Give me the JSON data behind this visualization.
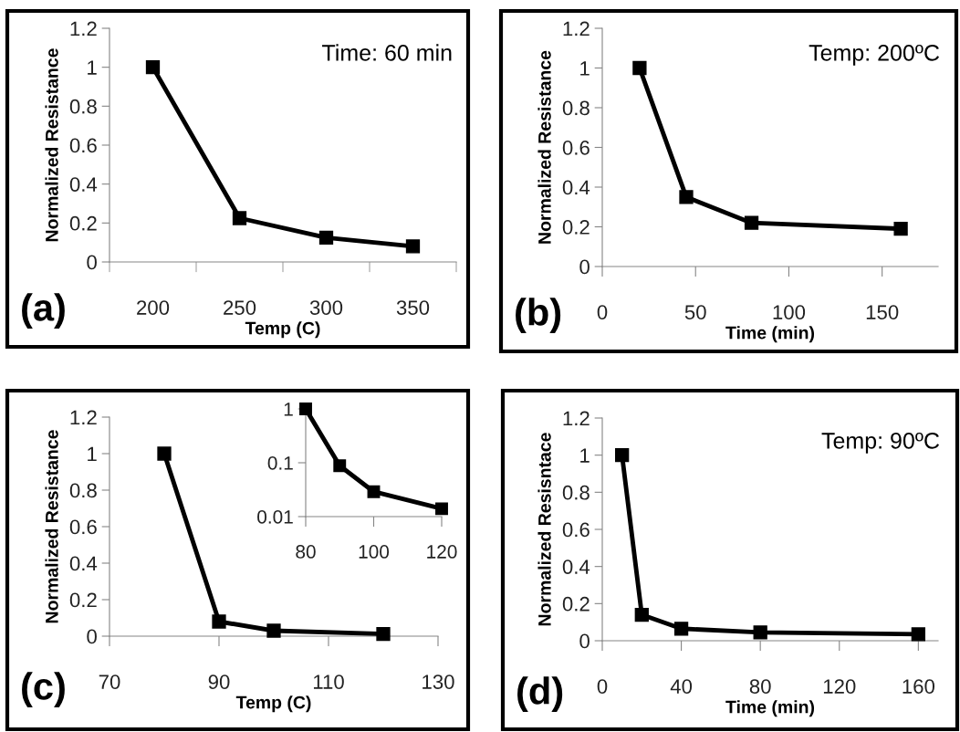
{
  "chart_data": [
    {
      "type": "line",
      "categories": [
        "200",
        "250",
        "300",
        "350"
      ],
      "xlabel": "Temp (C)",
      "ylabel": "Normalized Resistance",
      "ylim": [
        0,
        1.2
      ],
      "yticks": [
        0,
        0.2,
        0.4,
        0.6,
        0.8,
        1,
        1.2
      ],
      "marker": "square",
      "line_style": "solid",
      "grid": false,
      "legend": false,
      "series": [
        {
          "color": "#000000",
          "values": [
            1.0,
            0.225,
            0.125,
            0.08
          ]
        }
      ],
      "annotations": [
        "(a)",
        "Time: 60 min"
      ]
    },
    {
      "type": "line",
      "x": [
        20,
        45,
        80,
        160
      ],
      "xlabel": "Time (min)",
      "ylabel": "Normalized Resistance",
      "xlim": [
        0,
        180
      ],
      "xticks": [
        0,
        50,
        100,
        150
      ],
      "ylim": [
        0,
        1.2
      ],
      "yticks": [
        0,
        0.2,
        0.4,
        0.6,
        0.8,
        1,
        1.2
      ],
      "marker": "square",
      "line_style": "solid",
      "grid": false,
      "legend": false,
      "series": [
        {
          "color": "#000000",
          "values": [
            1.0,
            0.35,
            0.22,
            0.19
          ]
        }
      ],
      "annotations": [
        "(b)",
        "Temp: 200ºC"
      ]
    },
    {
      "type": "line",
      "x": [
        80,
        90,
        100,
        120
      ],
      "xlabel": "Temp (C)",
      "ylabel": "Normalized Resistance",
      "xlim": [
        70,
        130
      ],
      "xticks": [
        70,
        90,
        110,
        130
      ],
      "ylim": [
        0,
        1.2
      ],
      "yticks": [
        0,
        0.2,
        0.4,
        0.6,
        0.8,
        1,
        1.2
      ],
      "marker": "square",
      "line_style": "solid",
      "grid": false,
      "legend": false,
      "series": [
        {
          "color": "#000000",
          "values": [
            1.0,
            0.08,
            0.03,
            0.012
          ]
        }
      ],
      "annotations": [
        "(c)"
      ]
    },
    {
      "type": "line",
      "x": [
        80,
        90,
        100,
        120
      ],
      "xlim": [
        80,
        120
      ],
      "xticks": [
        80,
        100,
        120
      ],
      "log": "y",
      "ylim": [
        0.01,
        1
      ],
      "yticks": [
        0.01,
        0.1,
        1
      ],
      "marker": "square",
      "line_style": "solid",
      "grid": false,
      "legend": false,
      "series": [
        {
          "color": "#000000",
          "values": [
            1.0,
            0.088,
            0.029,
            0.014
          ]
        }
      ]
    },
    {
      "type": "line",
      "x": [
        10,
        20,
        40,
        80,
        160
      ],
      "xlabel": "Time (min)",
      "ylabel": "Normalized Resisntace",
      "xlim": [
        0,
        170
      ],
      "xticks": [
        0,
        40,
        80,
        120,
        160
      ],
      "ylim": [
        0,
        1.2
      ],
      "yticks": [
        0,
        0.2,
        0.4,
        0.6,
        0.8,
        1,
        1.2
      ],
      "marker": "square",
      "line_style": "solid",
      "grid": false,
      "legend": false,
      "series": [
        {
          "color": "#000000",
          "values": [
            1.0,
            0.14,
            0.065,
            0.045,
            0.035
          ]
        }
      ],
      "annotations": [
        "(d)",
        "Temp: 90ºC"
      ]
    }
  ]
}
